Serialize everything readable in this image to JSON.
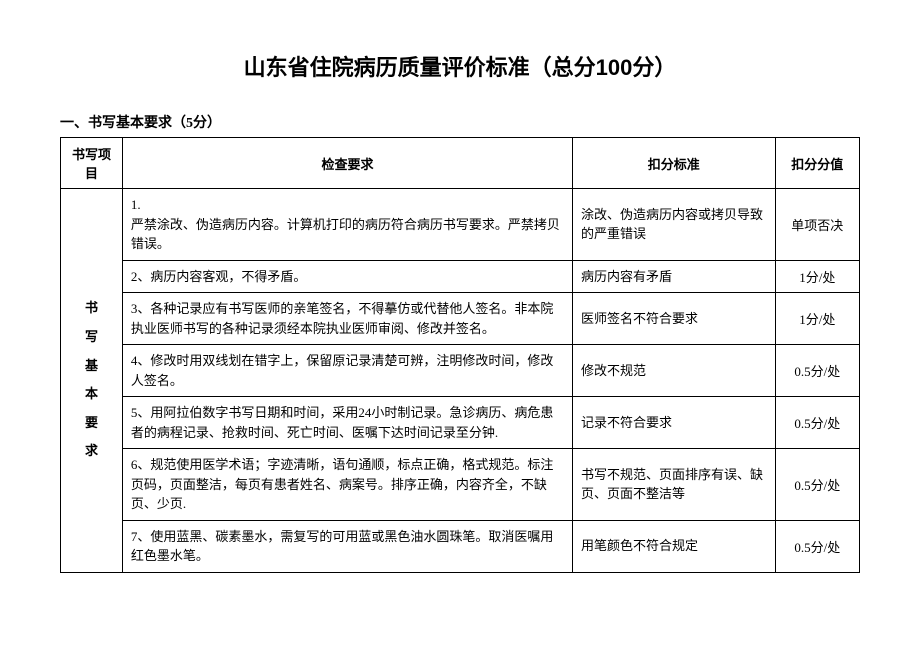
{
  "document": {
    "title": "山东省住院病历质量评价标准（总分100分）",
    "section_header": "一、书写基本要求（5分）",
    "table": {
      "headers": {
        "col1": "书写项目",
        "col2": "检查要求",
        "col3": "扣分标准",
        "col4": "扣分分值"
      },
      "row_label": "书\n写\n基\n本\n要\n求",
      "rows": [
        {
          "requirement": "1.\n严禁涂改、伪造病历内容。计算机打印的病历符合病历书写要求。严禁拷贝错误。",
          "standard": "涂改、伪造病历内容或拷贝导致的严重错误",
          "score": "单项否决"
        },
        {
          "requirement": "2、病历内容客观，不得矛盾。",
          "standard": "病历内容有矛盾",
          "score": "1分/处"
        },
        {
          "requirement": "3、各种记录应有书写医师的亲笔签名，不得摹仿或代替他人签名。非本院执业医师书写的各种记录须经本院执业医师审阅、修改并签名。",
          "standard": "医师签名不符合要求",
          "score": "1分/处"
        },
        {
          "requirement": "4、修改时用双线划在错字上，保留原记录清楚可辨，注明修改时间，修改人签名。",
          "standard": "修改不规范",
          "score": "0.5分/处"
        },
        {
          "requirement": "5、用阿拉伯数字书写日期和时间，采用24小时制记录。急诊病历、病危患者的病程记录、抢救时间、死亡时间、医嘱下达时间记录至分钟.",
          "standard": "记录不符合要求",
          "score": "0.5分/处"
        },
        {
          "requirement": "6、规范使用医学术语；字迹清晰，语句通顺，标点正确，格式规范。标注页码，页面整洁，每页有患者姓名、病案号。排序正确，内容齐全，不缺页、少页.",
          "standard": "书写不规范、页面排序有误、缺页、页面不整洁等",
          "score": "0.5分/处"
        },
        {
          "requirement": "7、使用蓝黑、碳素墨水，需复写的可用蓝或黑色油水圆珠笔。取消医嘱用红色墨水笔。",
          "standard": "用笔颜色不符合规定",
          "score": "0.5分/处"
        }
      ]
    }
  },
  "styling": {
    "page_bg": "#ffffff",
    "text_color": "#000000",
    "border_color": "#000000",
    "title_fontsize": 22,
    "body_fontsize": 13,
    "section_fontsize": 14
  }
}
